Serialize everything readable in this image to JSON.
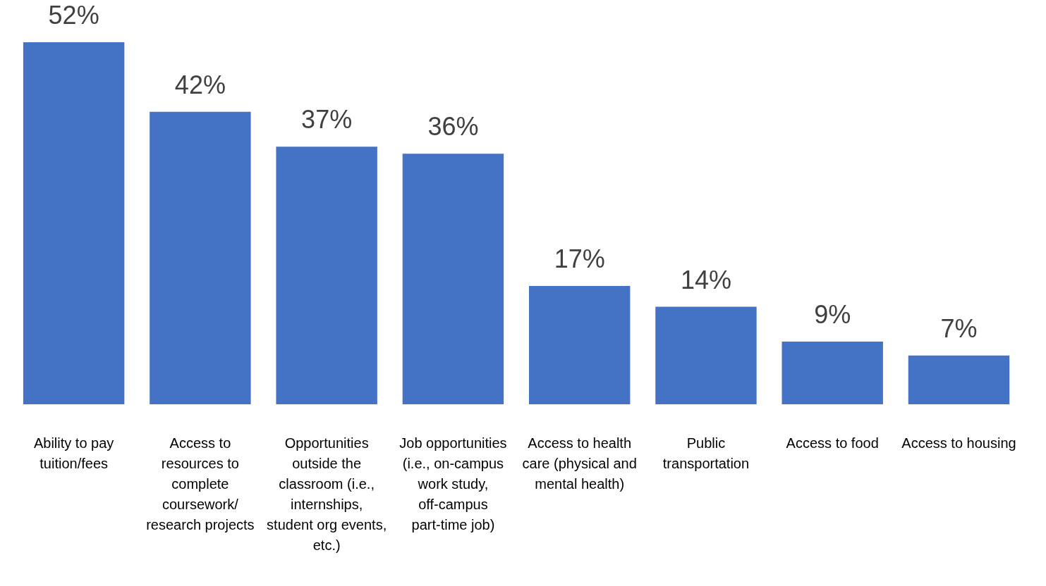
{
  "chart_data": {
    "type": "bar",
    "categories": [
      "Ability to pay tuition/fees",
      "Access to resources to complete coursework/ research projects",
      "Opportunities outside the classroom (i.e., internships, student org events, etc.)",
      "Job opportunities (i.e., on-campus work study, off-campus part-time job)",
      "Access to health care (physical and mental health)",
      "Public transportation",
      "Access to food",
      "Access to housing"
    ],
    "values": [
      52,
      42,
      37,
      36,
      17,
      14,
      9,
      7
    ],
    "color": "#4472c4",
    "value_labels": [
      "52%",
      "42%",
      "37%",
      "36%",
      "17%",
      "14%",
      "9%",
      "7%"
    ],
    "tick_labels": "x",
    "grid": false,
    "legend": false
  }
}
